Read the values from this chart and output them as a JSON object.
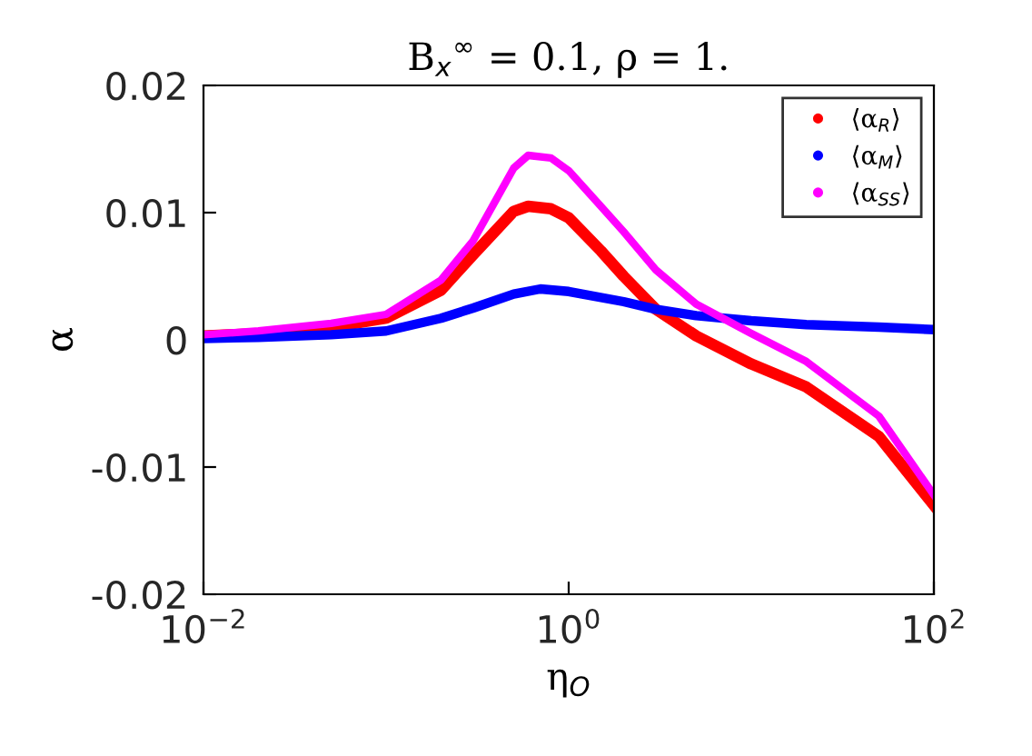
{
  "chart_data": {
    "type": "line",
    "title": "B$_{x}$$^{∞}$ = 0.1, ρ = 1.",
    "xlabel": "η$_{O}$",
    "ylabel": "α",
    "log": "x",
    "xlim": [
      0.01,
      100
    ],
    "xticks": [
      {
        "value": 0.01,
        "label": "10$^{−2}$"
      },
      {
        "value": 1,
        "label": "10$^{0}$"
      },
      {
        "value": 100,
        "label": "10$^{2}$"
      }
    ],
    "ylim": [
      -0.02,
      0.02
    ],
    "yticks": [
      {
        "value": -0.02,
        "label": "-0.02"
      },
      {
        "value": -0.01,
        "label": "-0.01"
      },
      0,
      0.01,
      0.02
    ],
    "grid": false,
    "legend": "top right",
    "line_style": "solid",
    "series": [
      {
        "name": "⟨α$_{R}$⟩",
        "color": "#ff0000",
        "x": [
          0.01,
          0.02,
          0.05,
          0.1,
          0.2,
          0.3,
          0.5,
          0.6,
          0.8,
          1,
          1.5,
          2,
          3,
          5,
          10,
          20,
          50,
          100
        ],
        "values": [
          0.0003,
          0.0005,
          0.001,
          0.0017,
          0.0039,
          0.0067,
          0.0101,
          0.0105,
          0.0103,
          0.0096,
          0.007,
          0.005,
          0.0024,
          0.0003,
          -0.0019,
          -0.0037,
          -0.0076,
          -0.013
        ]
      },
      {
        "name": "⟨α$_{M}$⟩",
        "color": "#0000ff",
        "x": [
          0.01,
          0.02,
          0.05,
          0.1,
          0.2,
          0.3,
          0.5,
          0.7,
          1,
          2,
          3,
          5,
          10,
          20,
          50,
          100
        ],
        "values": [
          0.0001,
          0.0002,
          0.0004,
          0.0007,
          0.0017,
          0.0025,
          0.0036,
          0.004,
          0.0038,
          0.003,
          0.0024,
          0.0019,
          0.0015,
          0.0012,
          0.001,
          0.0008
        ]
      },
      {
        "name": "⟨α$_{SS}$⟩",
        "color": "#ff00ff",
        "x": [
          0.01,
          0.02,
          0.05,
          0.1,
          0.2,
          0.3,
          0.5,
          0.6,
          0.8,
          1,
          1.5,
          2,
          3,
          5,
          10,
          20,
          50,
          100
        ],
        "values": [
          0.0004,
          0.0007,
          0.0013,
          0.002,
          0.0047,
          0.0078,
          0.0135,
          0.0145,
          0.0143,
          0.0133,
          0.0105,
          0.0085,
          0.0055,
          0.0028,
          0.0005,
          -0.0017,
          -0.006,
          -0.0122
        ]
      }
    ]
  }
}
